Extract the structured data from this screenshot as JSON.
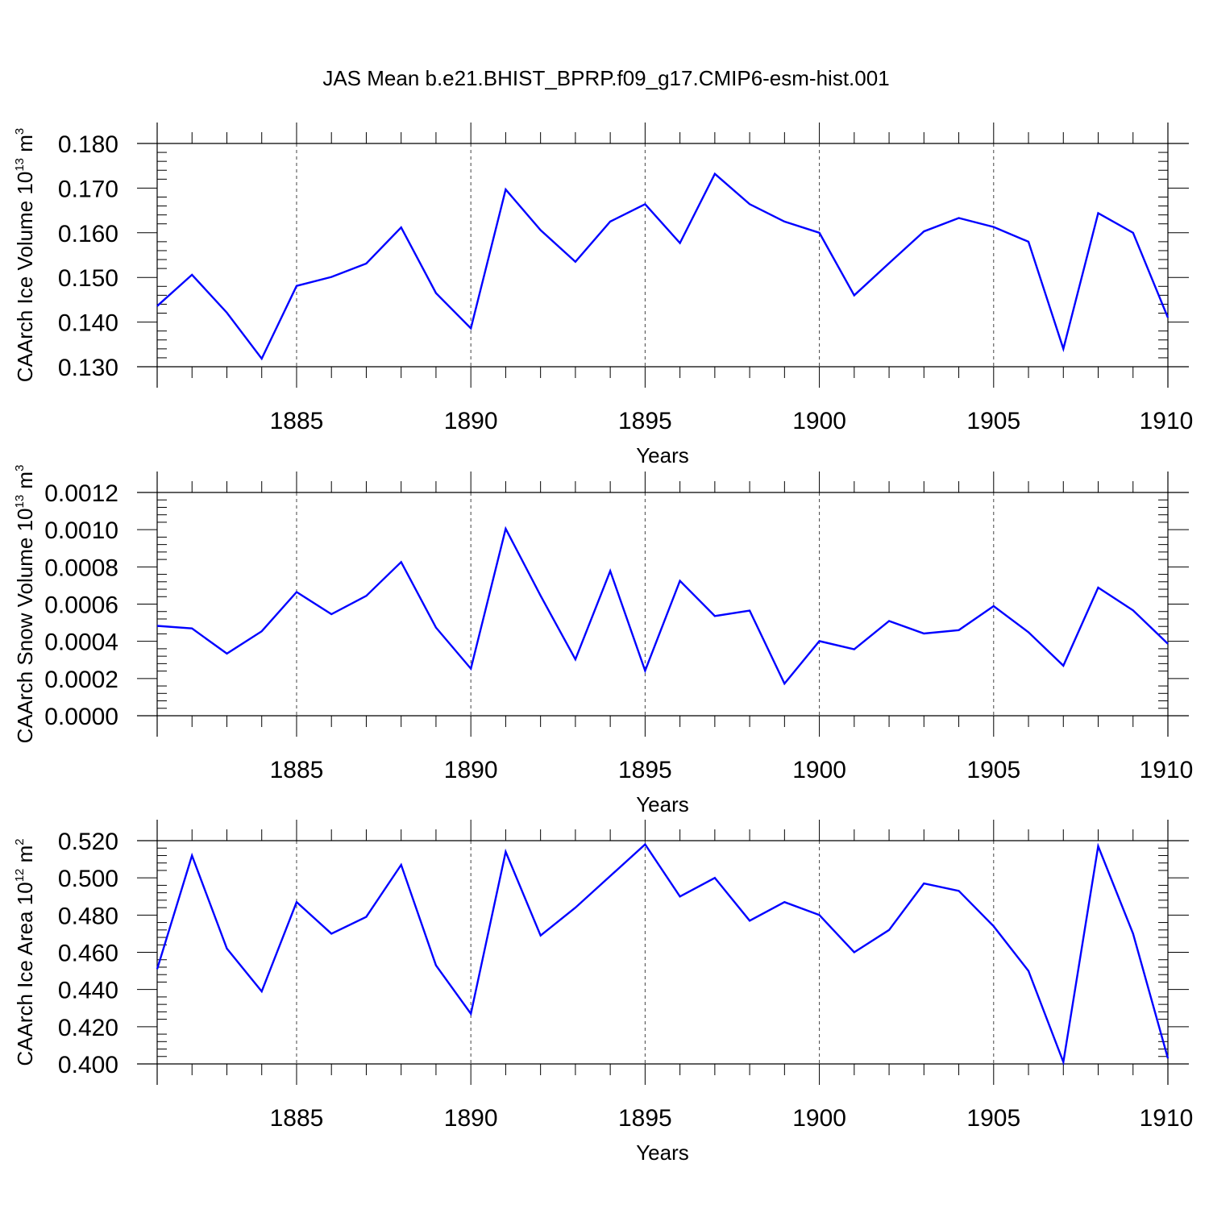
{
  "title": "JAS Mean b.e21.BHIST_BPRP.f09_g17.CMIP6-esm-hist.001",
  "colors": {
    "series": "#0000ff",
    "axis": "#000000",
    "grid": "#444444",
    "background": "#ffffff"
  },
  "chart_data": [
    {
      "type": "line",
      "xlabel": "Years",
      "ylabel": {
        "text": "CAArch Ice Volume 10",
        "exp": "13",
        "unit": " m",
        "unit_exp": "3"
      },
      "xlim": [
        1881,
        1910
      ],
      "ylim": [
        0.13,
        0.18
      ],
      "xticks": [
        1885,
        1890,
        1895,
        1900,
        1905,
        1910
      ],
      "yticks": [
        "0.130",
        "0.140",
        "0.150",
        "0.160",
        "0.170",
        "0.180"
      ],
      "grid": "vertical dashed at major x ticks",
      "series": [
        {
          "name": "CAArch Ice Volume",
          "x": [
            1881,
            1882,
            1883,
            1884,
            1885,
            1886,
            1887,
            1888,
            1889,
            1890,
            1891,
            1892,
            1893,
            1894,
            1895,
            1896,
            1897,
            1898,
            1899,
            1900,
            1901,
            1902,
            1903,
            1904,
            1905,
            1906,
            1907,
            1908,
            1909,
            1910
          ],
          "values": [
            0.1436,
            0.1506,
            0.1421,
            0.1318,
            0.1481,
            0.1501,
            0.1531,
            0.1612,
            0.1465,
            0.1386,
            0.1697,
            0.1606,
            0.1535,
            0.1625,
            0.1664,
            0.1577,
            0.1732,
            0.1664,
            0.1625,
            0.16,
            0.146,
            0.1532,
            0.1603,
            0.1633,
            0.1613,
            0.158,
            0.134,
            0.1644,
            0.16,
            0.141
          ]
        }
      ]
    },
    {
      "type": "line",
      "xlabel": "Years",
      "ylabel": {
        "text": "CAArch Snow Volume 10",
        "exp": "13",
        "unit": " m",
        "unit_exp": "3"
      },
      "xlim": [
        1881,
        1910
      ],
      "ylim": [
        0.0,
        0.0012
      ],
      "xticks": [
        1885,
        1890,
        1895,
        1900,
        1905,
        1910
      ],
      "yticks": [
        "0.0000",
        "0.0002",
        "0.0004",
        "0.0006",
        "0.0008",
        "0.0010",
        "0.0012"
      ],
      "grid": "vertical dashed at major x ticks",
      "series": [
        {
          "name": "CAArch Snow Volume",
          "x": [
            1881,
            1882,
            1883,
            1884,
            1885,
            1886,
            1887,
            1888,
            1889,
            1890,
            1891,
            1892,
            1893,
            1894,
            1895,
            1896,
            1897,
            1898,
            1899,
            1900,
            1901,
            1902,
            1903,
            1904,
            1905,
            1906,
            1907,
            1908,
            1909,
            1910
          ],
          "values": [
            0.000483,
            0.000469,
            0.000334,
            0.000454,
            0.000665,
            0.000546,
            0.000644,
            0.000826,
            0.000474,
            0.000253,
            0.001005,
            0.000645,
            0.000303,
            0.000778,
            0.000242,
            0.000725,
            0.000536,
            0.000565,
            0.000173,
            0.000401,
            0.000357,
            0.000509,
            0.000442,
            0.00046,
            0.000589,
            0.000449,
            0.000269,
            0.000689,
            0.000566,
            0.000387
          ]
        }
      ]
    },
    {
      "type": "line",
      "xlabel": "Years",
      "ylabel": {
        "text": "CAArch Ice Area 10",
        "exp": "12",
        "unit": " m",
        "unit_exp": "2"
      },
      "xlim": [
        1881,
        1910
      ],
      "ylim": [
        0.4,
        0.52
      ],
      "xticks": [
        1885,
        1890,
        1895,
        1900,
        1905,
        1910
      ],
      "yticks": [
        "0.400",
        "0.420",
        "0.440",
        "0.460",
        "0.480",
        "0.500",
        "0.520"
      ],
      "grid": "vertical dashed at major x ticks",
      "series": [
        {
          "name": "CAArch Ice Area",
          "x": [
            1881,
            1882,
            1883,
            1884,
            1885,
            1886,
            1887,
            1888,
            1889,
            1890,
            1891,
            1892,
            1893,
            1894,
            1895,
            1896,
            1897,
            1898,
            1899,
            1900,
            1901,
            1902,
            1903,
            1904,
            1905,
            1906,
            1907,
            1908,
            1909,
            1910
          ],
          "values": [
            0.451,
            0.512,
            0.462,
            0.439,
            0.487,
            0.47,
            0.479,
            0.507,
            0.453,
            0.427,
            0.514,
            0.469,
            0.484,
            0.501,
            0.518,
            0.49,
            0.5,
            0.477,
            0.487,
            0.48,
            0.46,
            0.472,
            0.497,
            0.493,
            0.474,
            0.45,
            0.401,
            0.517,
            0.47,
            0.403
          ]
        }
      ]
    }
  ]
}
